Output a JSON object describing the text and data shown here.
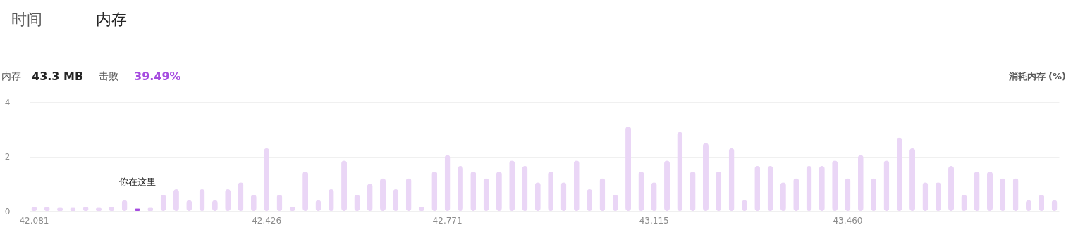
{
  "chart_data": {
    "type": "bar",
    "ylabel": "消耗内存 (%)",
    "categories": [
      "42.081",
      null,
      null,
      null,
      null,
      null,
      null,
      null,
      null,
      null,
      null,
      null,
      null,
      null,
      null,
      null,
      null,
      null,
      "42.426",
      null,
      null,
      null,
      null,
      null,
      null,
      null,
      null,
      null,
      null,
      null,
      null,
      null,
      "42.771",
      null,
      null,
      null,
      null,
      null,
      null,
      null,
      null,
      null,
      null,
      null,
      null,
      null,
      null,
      null,
      "43.115",
      null,
      null,
      null,
      null,
      null,
      null,
      null,
      null,
      null,
      null,
      null,
      null,
      null,
      null,
      "43.460",
      null,
      null,
      null,
      null,
      null,
      null,
      null,
      null,
      null,
      null,
      null,
      null,
      null,
      null,
      null,
      null
    ],
    "values": [
      0.15,
      0.15,
      0.12,
      0.12,
      0.15,
      0.12,
      0.15,
      0.4,
      0.1,
      0.12,
      0.6,
      0.8,
      0.4,
      0.8,
      0.4,
      0.8,
      1.05,
      0.6,
      2.3,
      0.6,
      0.15,
      1.45,
      0.4,
      0.8,
      1.85,
      0.6,
      1.0,
      1.2,
      0.8,
      1.2,
      0.15,
      1.45,
      2.05,
      1.65,
      1.45,
      1.2,
      1.45,
      1.85,
      1.65,
      1.05,
      1.45,
      1.05,
      1.85,
      0.8,
      1.2,
      0.6,
      3.1,
      1.45,
      1.05,
      1.85,
      2.9,
      1.45,
      2.5,
      1.45,
      2.3,
      0.4,
      1.65,
      1.65,
      1.05,
      1.2,
      1.65,
      1.65,
      1.85,
      1.2,
      2.05,
      1.2,
      1.85,
      2.7,
      2.3,
      1.05,
      1.05,
      1.65,
      0.6,
      1.45,
      1.45,
      1.2,
      1.2,
      0.4,
      0.6,
      0.4
    ],
    "colors": [
      "#ead6f6",
      "#ead6f6",
      "#ead6f6",
      "#ead6f6",
      "#ead6f6",
      "#ead6f6",
      "#ead6f6",
      "#ead6f6",
      "#a64ce0",
      "#ead6f6",
      "#ead6f6",
      "#ead6f6",
      "#ead6f6",
      "#ead6f6",
      "#ead6f6",
      "#ead6f6",
      "#ead6f6",
      "#ead6f6",
      "#ead6f6",
      "#ead6f6",
      "#ead6f6",
      "#ead6f6",
      "#ead6f6",
      "#ead6f6",
      "#ead6f6",
      "#ead6f6",
      "#ead6f6",
      "#ead6f6",
      "#ead6f6",
      "#ead6f6",
      "#ead6f6",
      "#ead6f6",
      "#ead6f6",
      "#ead6f6",
      "#ead6f6",
      "#ead6f6",
      "#ead6f6",
      "#ead6f6",
      "#ead6f6",
      "#ead6f6",
      "#ead6f6",
      "#ead6f6",
      "#ead6f6",
      "#ead6f6",
      "#ead6f6",
      "#ead6f6",
      "#ead6f6",
      "#ead6f6",
      "#ead6f6",
      "#ead6f6",
      "#ead6f6",
      "#ead6f6",
      "#ead6f6",
      "#ead6f6",
      "#ead6f6",
      "#ead6f6",
      "#ead6f6",
      "#ead6f6",
      "#ead6f6",
      "#ead6f6",
      "#ead6f6",
      "#ead6f6",
      "#ead6f6",
      "#ead6f6",
      "#ead6f6",
      "#ead6f6",
      "#ead6f6",
      "#ead6f6",
      "#ead6f6",
      "#ead6f6",
      "#ead6f6",
      "#ead6f6",
      "#ead6f6",
      "#ead6f6",
      "#ead6f6",
      "#ead6f6",
      "#ead6f6",
      "#ead6f6",
      "#ead6f6",
      "#ead6f6"
    ],
    "ylim": [
      0,
      4
    ],
    "yticks": [
      0,
      2,
      4
    ],
    "grid": "y",
    "annotations": [
      "时间",
      "内存",
      "内存",
      "43.3 MB",
      "击败",
      "39.49%",
      {
        "text": "你在这里",
        "y": 0.1
      }
    ]
  }
}
